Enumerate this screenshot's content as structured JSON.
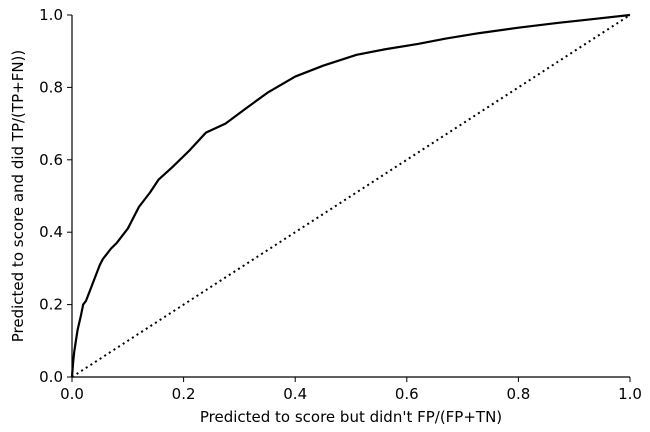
{
  "chart_data": {
    "type": "line",
    "title": "",
    "xlabel": "Predicted to score but didn't FP/(FP+TN)",
    "ylabel": "Predicted to score and did TP/(TP+FN))",
    "xlim": [
      0.0,
      1.0
    ],
    "ylim": [
      0.0,
      1.0
    ],
    "x_ticks": [
      0.0,
      0.2,
      0.4,
      0.6,
      0.8,
      1.0
    ],
    "y_ticks": [
      0.0,
      0.2,
      0.4,
      0.6,
      0.8,
      1.0
    ],
    "x_tick_labels": [
      "0.0",
      "0.2",
      "0.4",
      "0.6",
      "0.8",
      "1.0"
    ],
    "y_tick_labels": [
      "0.0",
      "0.2",
      "0.4",
      "0.6",
      "0.8",
      "1.0"
    ],
    "grid": false,
    "legend": "none",
    "series": [
      {
        "style": "solid",
        "color": "#000000",
        "x": [
          0.0,
          0.002,
          0.004,
          0.006,
          0.008,
          0.01,
          0.013,
          0.016,
          0.02,
          0.025,
          0.03,
          0.035,
          0.04,
          0.045,
          0.05,
          0.055,
          0.06,
          0.065,
          0.07,
          0.08,
          0.09,
          0.1,
          0.12,
          0.14,
          0.155,
          0.18,
          0.21,
          0.24,
          0.275,
          0.31,
          0.35,
          0.4,
          0.45,
          0.51,
          0.56,
          0.62,
          0.67,
          0.73,
          0.8,
          0.87,
          0.93,
          1.0
        ],
        "y": [
          0.0,
          0.04,
          0.07,
          0.09,
          0.11,
          0.13,
          0.15,
          0.17,
          0.2,
          0.21,
          0.23,
          0.25,
          0.27,
          0.29,
          0.31,
          0.325,
          0.335,
          0.345,
          0.355,
          0.37,
          0.39,
          0.41,
          0.47,
          0.51,
          0.545,
          0.58,
          0.625,
          0.675,
          0.7,
          0.74,
          0.785,
          0.83,
          0.86,
          0.89,
          0.905,
          0.92,
          0.935,
          0.95,
          0.965,
          0.978,
          0.988,
          1.0
        ]
      },
      {
        "style": "dotted",
        "color": "#000000",
        "x": [
          0.0,
          1.0
        ],
        "y": [
          0.0,
          1.0
        ]
      }
    ]
  }
}
